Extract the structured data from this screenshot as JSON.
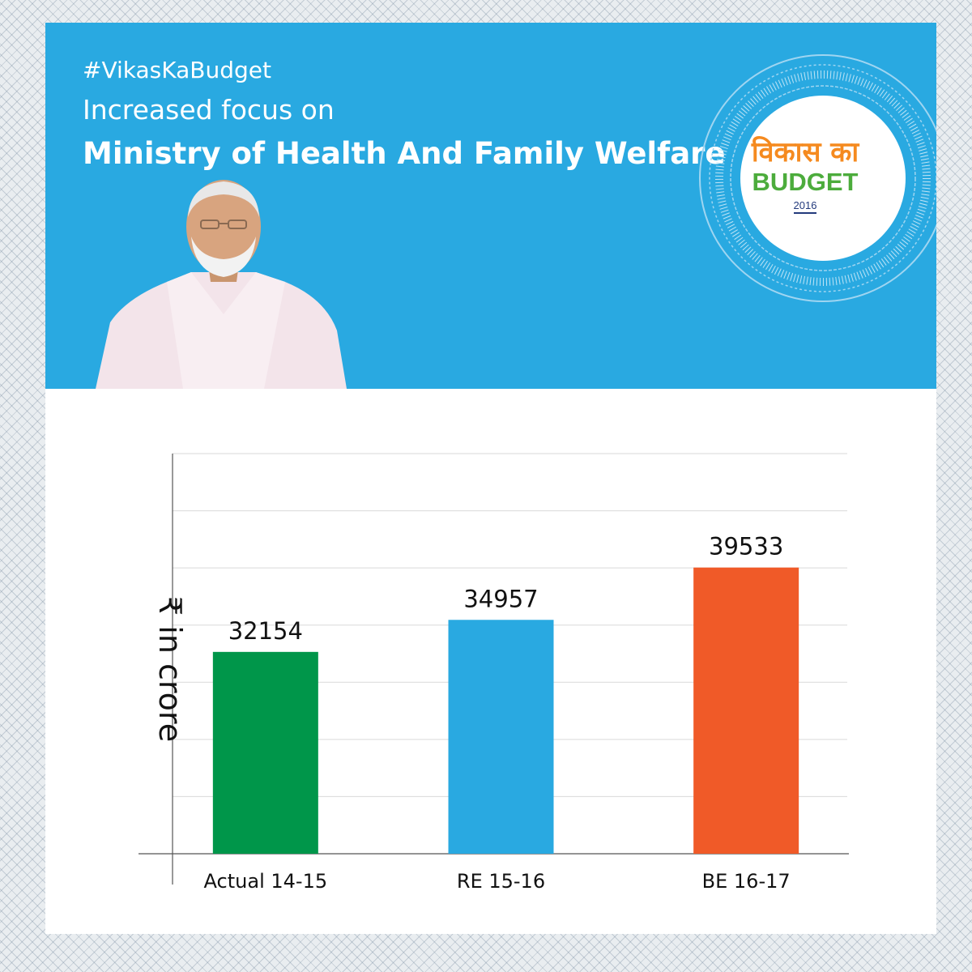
{
  "header": {
    "hashtag": "#VikasKaBudget",
    "subtitle": "Increased  focus on",
    "title": "Ministry of Health And Family Welfare"
  },
  "seal": {
    "line1": "विकास का",
    "line2": "BUDGET",
    "year": "2016"
  },
  "colors": {
    "banner": "#29a9e1",
    "series": [
      "#00964a",
      "#29a9e1",
      "#f05a28"
    ]
  },
  "chart_data": {
    "type": "bar",
    "categories": [
      "Actual 14-15",
      "RE 15-16",
      "BE 16-17"
    ],
    "values": [
      32154,
      34957,
      39533
    ],
    "value_labels": [
      "32154",
      "34957",
      "39533"
    ],
    "colors": [
      "#00964a",
      "#29a9e1",
      "#f05a28"
    ],
    "ylabel": "₹ in crore",
    "xlabel": "",
    "title": "",
    "ylim": [
      14500,
      49500
    ],
    "grid": true,
    "legend": "none"
  }
}
